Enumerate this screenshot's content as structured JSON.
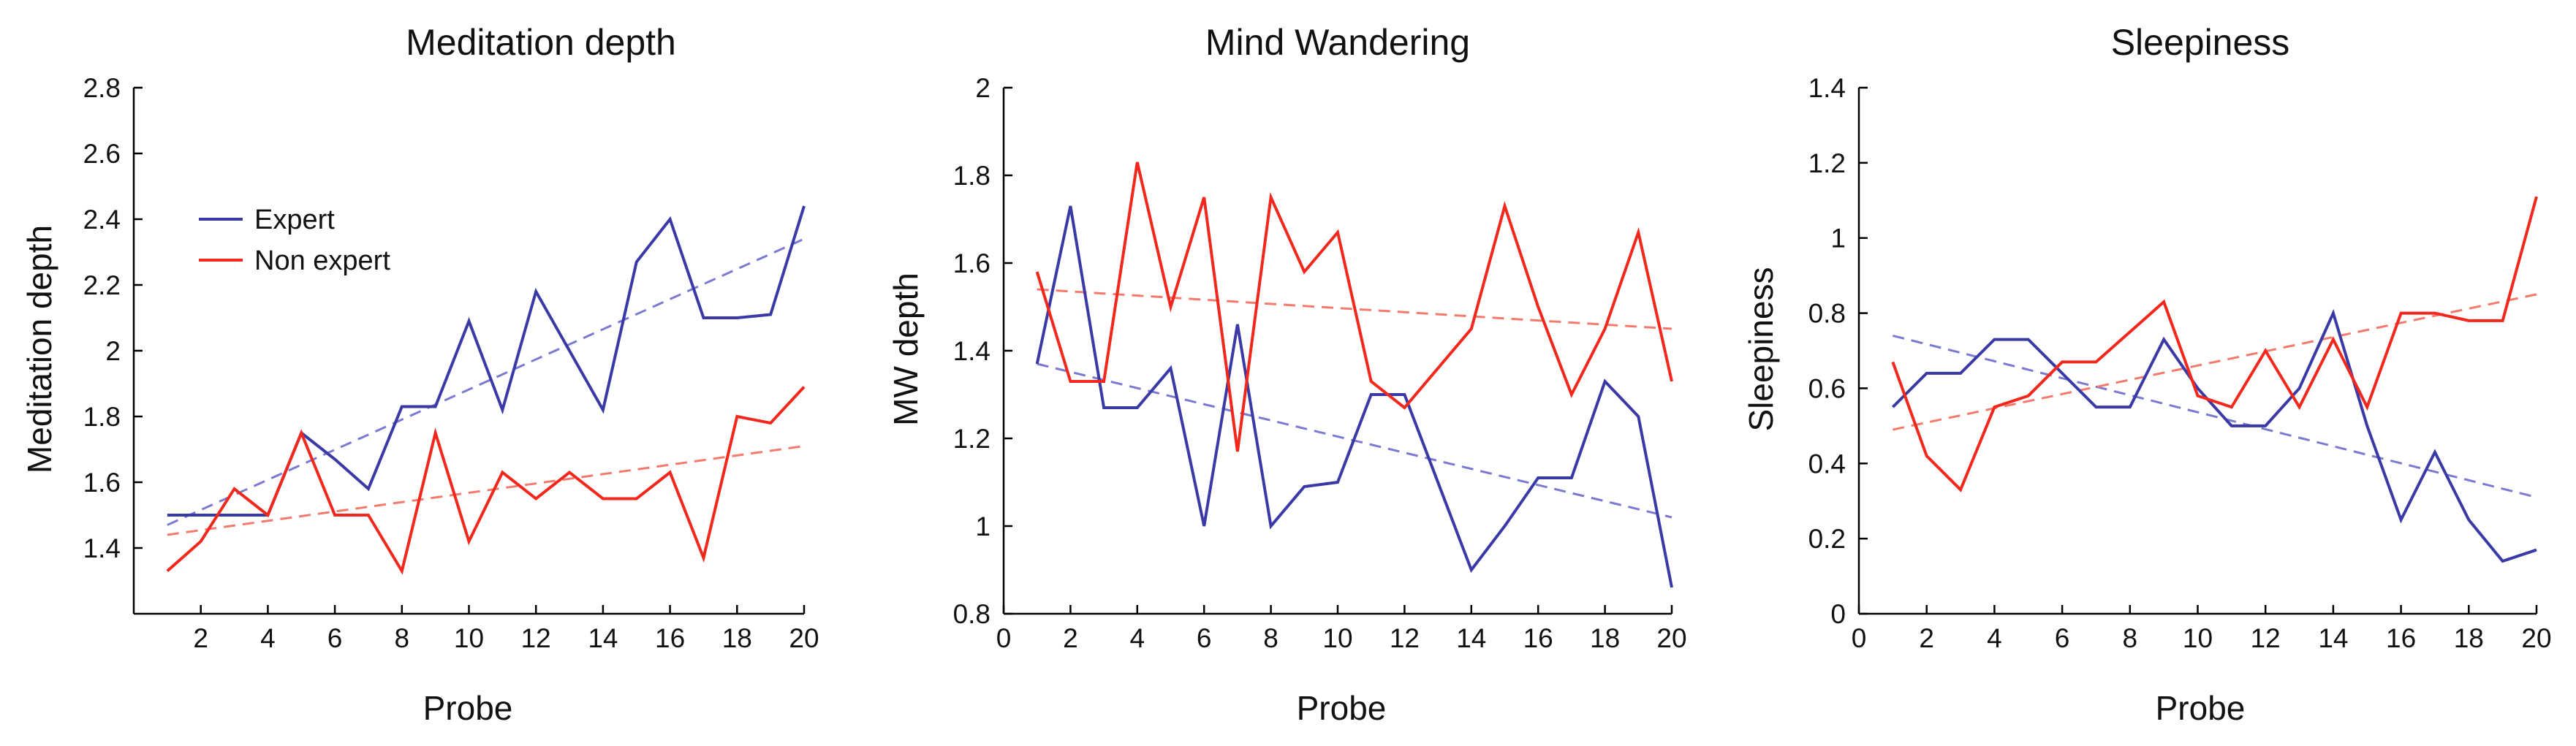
{
  "colors": {
    "expert": "#3a3aa6",
    "nonexpert": "#f2281d",
    "expert_trend": "#7a7ad0",
    "nonexpert_trend": "#f47a6e"
  },
  "chart_data": [
    {
      "type": "line",
      "title": "Meditation depth",
      "xlabel": "Probe",
      "ylabel": "Meditation depth",
      "xlim": [
        0,
        20
      ],
      "ylim": [
        1.2,
        2.8
      ],
      "xticks": [
        2,
        4,
        6,
        8,
        10,
        12,
        14,
        16,
        18,
        20
      ],
      "yticks": [
        1.4,
        1.6,
        1.8,
        2,
        2.2,
        2.4,
        2.6,
        2.8
      ],
      "legend": {
        "placement": "top-left",
        "entries": [
          "Expert",
          "Non expert"
        ]
      },
      "x": [
        1,
        2,
        3,
        4,
        5,
        6,
        7,
        8,
        9,
        10,
        11,
        12,
        13,
        14,
        15,
        16,
        17,
        18,
        19,
        20
      ],
      "series": [
        {
          "name": "Expert",
          "color": "expert",
          "style": "solid",
          "values": [
            1.5,
            1.5,
            1.5,
            1.5,
            1.75,
            1.67,
            1.58,
            1.83,
            1.83,
            2.09,
            1.82,
            2.18,
            2.0,
            1.82,
            2.27,
            2.4,
            2.1,
            2.1,
            2.11,
            2.44
          ]
        },
        {
          "name": "Non expert",
          "color": "nonexpert",
          "style": "solid",
          "values": [
            1.33,
            1.42,
            1.58,
            1.5,
            1.75,
            1.5,
            1.5,
            1.33,
            1.75,
            1.42,
            1.63,
            1.55,
            1.63,
            1.55,
            1.55,
            1.63,
            1.37,
            1.8,
            1.78,
            1.89
          ]
        }
      ],
      "trends": [
        {
          "color": "expert_trend",
          "x": [
            1,
            20
          ],
          "y": [
            1.47,
            2.34
          ]
        },
        {
          "color": "nonexpert_trend",
          "x": [
            1,
            20
          ],
          "y": [
            1.44,
            1.71
          ]
        }
      ]
    },
    {
      "type": "line",
      "title": "Mind Wandering",
      "xlabel": "Probe",
      "ylabel": "MW depth",
      "xlim": [
        0,
        20
      ],
      "ylim": [
        0.8,
        2
      ],
      "xticks": [
        0,
        2,
        4,
        6,
        8,
        10,
        12,
        14,
        16,
        18,
        20
      ],
      "yticks": [
        0.8,
        1,
        1.2,
        1.4,
        1.6,
        1.8,
        2
      ],
      "x": [
        1,
        2,
        3,
        4,
        5,
        6,
        7,
        8,
        9,
        10,
        11,
        12,
        13,
        14,
        15,
        16,
        17,
        18,
        19,
        20
      ],
      "series": [
        {
          "name": "Expert",
          "color": "expert",
          "style": "solid",
          "values": [
            1.37,
            1.73,
            1.27,
            1.27,
            1.36,
            1.0,
            1.46,
            1.0,
            1.09,
            1.1,
            1.3,
            1.3,
            1.1,
            0.9,
            1.0,
            1.11,
            1.11,
            1.33,
            1.25,
            0.86
          ]
        },
        {
          "name": "Non expert",
          "color": "nonexpert",
          "style": "solid",
          "values": [
            1.58,
            1.33,
            1.33,
            1.83,
            1.5,
            1.75,
            1.17,
            1.75,
            1.58,
            1.67,
            1.33,
            1.27,
            1.36,
            1.45,
            1.73,
            1.5,
            1.3,
            1.45,
            1.67,
            1.33
          ]
        }
      ],
      "trends": [
        {
          "color": "expert_trend",
          "x": [
            1,
            20
          ],
          "y": [
            1.37,
            1.02
          ]
        },
        {
          "color": "nonexpert_trend",
          "x": [
            1,
            20
          ],
          "y": [
            1.54,
            1.45
          ]
        }
      ]
    },
    {
      "type": "line",
      "title": "Sleepiness",
      "xlabel": "Probe",
      "ylabel": "Sleepiness",
      "xlim": [
        0,
        20
      ],
      "ylim": [
        0,
        1.4
      ],
      "xticks": [
        0,
        2,
        4,
        6,
        8,
        10,
        12,
        14,
        16,
        18,
        20
      ],
      "yticks": [
        0,
        0.2,
        0.4,
        0.6,
        0.8,
        1,
        1.2,
        1.4
      ],
      "x": [
        1,
        2,
        3,
        4,
        5,
        6,
        7,
        8,
        9,
        10,
        11,
        12,
        13,
        14,
        15,
        16,
        17,
        18,
        19,
        20
      ],
      "series": [
        {
          "name": "Expert",
          "color": "expert",
          "style": "solid",
          "values": [
            0.55,
            0.64,
            0.64,
            0.73,
            0.73,
            0.64,
            0.55,
            0.55,
            0.73,
            0.6,
            0.5,
            0.5,
            0.6,
            0.8,
            0.5,
            0.25,
            0.43,
            0.25,
            0.14,
            0.17
          ]
        },
        {
          "name": "Non expert",
          "color": "nonexpert",
          "style": "solid",
          "values": [
            0.67,
            0.42,
            0.33,
            0.55,
            0.58,
            0.67,
            0.67,
            0.75,
            0.83,
            0.58,
            0.55,
            0.7,
            0.55,
            0.73,
            0.55,
            0.8,
            0.8,
            0.78,
            0.78,
            1.11
          ]
        }
      ],
      "trends": [
        {
          "color": "expert_trend",
          "x": [
            1,
            20
          ],
          "y": [
            0.74,
            0.31
          ]
        },
        {
          "color": "nonexpert_trend",
          "x": [
            1,
            20
          ],
          "y": [
            0.49,
            0.85
          ]
        }
      ]
    }
  ]
}
